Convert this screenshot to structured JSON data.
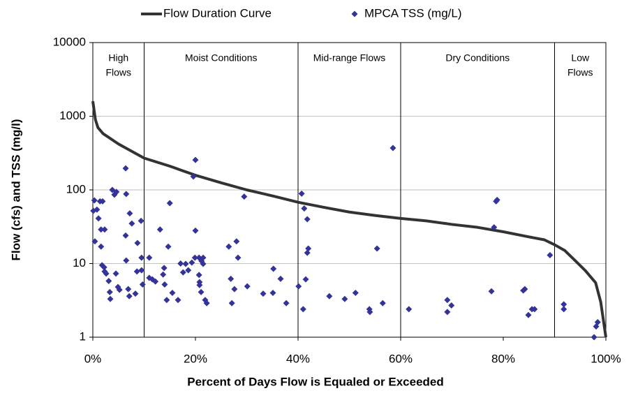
{
  "chart_data": {
    "type": "line",
    "x_label": "Percent of Days Flow is Equaled or Exceeded",
    "y_label": "Flow (cfs) and TSS (mg/l)",
    "xlim": [
      0,
      100
    ],
    "xticks": [
      {
        "value": 0,
        "label": "0%"
      },
      {
        "value": 20,
        "label": "20%"
      },
      {
        "value": 40,
        "label": "40%"
      },
      {
        "value": 60,
        "label": "60%"
      },
      {
        "value": 80,
        "label": "80%"
      },
      {
        "value": 100,
        "label": "100%"
      }
    ],
    "ylim": [
      1,
      10000
    ],
    "yticks": [
      1,
      10,
      100,
      1000,
      10000
    ],
    "ylog": true,
    "grid": true,
    "legend": "top",
    "dividers": [
      10,
      40,
      60,
      90
    ],
    "zones": [
      [
        "High",
        "Flows"
      ],
      [
        "Moist Conditions"
      ],
      [
        "Mid-range Flows"
      ],
      [
        "Dry Conditions"
      ],
      [
        "Low",
        "Flows"
      ]
    ],
    "series": [
      {
        "name": "Flow Duration Curve",
        "type": "line",
        "color": "#333333",
        "x": [
          0,
          0.5,
          1,
          2,
          5,
          10,
          15,
          20,
          25,
          30,
          35,
          40,
          45,
          50,
          55,
          60,
          65,
          70,
          75,
          80,
          85,
          88,
          90,
          92,
          94,
          96,
          98,
          99,
          100
        ],
        "values": [
          1600,
          900,
          700,
          580,
          420,
          270,
          210,
          158,
          125,
          100,
          83,
          68,
          58,
          50,
          45,
          41,
          38,
          34,
          31,
          27,
          23,
          21,
          18,
          15,
          11,
          8,
          5.5,
          3,
          1
        ]
      },
      {
        "name": "MPCA TSS (mg/L)",
        "type": "scatter",
        "color": "#333399",
        "x": [
          0.3,
          0.1,
          0.4,
          0.8,
          1.1,
          1.4,
          1.6,
          1.9,
          2.3,
          1.6,
          1.8,
          2.2,
          2.3,
          2.6,
          3.1,
          3.3,
          3.4,
          3.8,
          4.2,
          4.6,
          4.5,
          4.9,
          5.2,
          6.4,
          6.5,
          6.4,
          6.5,
          7.2,
          6.9,
          7.1,
          7.6,
          8.3,
          8.7,
          8.6,
          9.4,
          9.5,
          9.5,
          9.7,
          11.0,
          11.0,
          11.6,
          12.2,
          13.1,
          13.7,
          13.9,
          14.0,
          14.4,
          14.7,
          15.0,
          15.5,
          16.6,
          17.1,
          17.6,
          18.1,
          18.6,
          19.3,
          20.0,
          19.6,
          20.0,
          19.9,
          20.7,
          20.7,
          20.8,
          20.8,
          21.1,
          21.2,
          21.5,
          21.5,
          21.9,
          22.2,
          26.5,
          26.9,
          27.6,
          27.1,
          28.0,
          28.3,
          30.1,
          29.5,
          33.2,
          35.1,
          35.2,
          36.6,
          37.7,
          40.1,
          40.7,
          41.2,
          41.8,
          41.0,
          41.5,
          41.8,
          42.0,
          46.1,
          49.1,
          51.2,
          53.9,
          54.0,
          55.4,
          56.5,
          58.5,
          61.6,
          69.1,
          69.1,
          69.9,
          77.7,
          78.2,
          78.6,
          78.8,
          83.9,
          84.2,
          84.9,
          85.6,
          86.1,
          89.1,
          91.8,
          91.8,
          97.7,
          98.1,
          98.4
        ],
        "values": [
          72,
          52,
          20,
          54,
          41,
          70,
          29,
          70,
          29,
          17,
          9.5,
          8.9,
          7.8,
          7.3,
          5.8,
          4.1,
          3.3,
          100,
          86,
          94,
          7.3,
          4.8,
          4.4,
          196,
          88,
          24,
          11,
          48,
          4.5,
          3.6,
          35,
          3.9,
          19,
          7.8,
          38,
          12,
          8.1,
          5.2,
          12,
          6.4,
          6.1,
          5.7,
          29,
          7.1,
          8.7,
          5.2,
          3.2,
          17,
          66,
          4.0,
          3.2,
          10,
          7.6,
          9.9,
          8.1,
          10.3,
          255,
          152,
          28,
          12,
          12,
          7.0,
          5.6,
          5.1,
          4.1,
          10.8,
          12,
          9.9,
          3.2,
          2.9,
          17,
          6.2,
          4.5,
          2.9,
          20,
          12,
          4.9,
          81,
          3.9,
          4.0,
          8.5,
          6.2,
          2.9,
          4.9,
          89,
          56,
          40,
          2.4,
          6.1,
          14,
          16,
          3.6,
          3.3,
          4.0,
          2.4,
          2.2,
          16,
          2.9,
          370,
          2.4,
          3.2,
          2.2,
          2.7,
          4.2,
          31,
          70,
          73,
          4.3,
          4.5,
          2.0,
          2.4,
          2.4,
          13,
          2.8,
          2.4,
          1.0,
          1.4,
          1.6
        ]
      }
    ]
  }
}
